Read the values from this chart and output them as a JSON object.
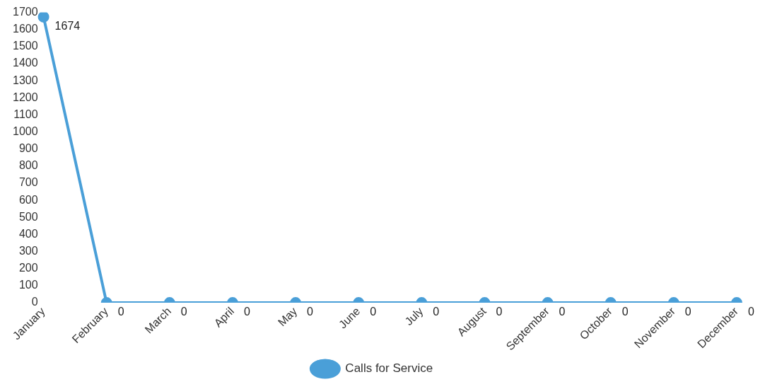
{
  "chart_data": {
    "type": "line",
    "categories": [
      "January",
      "February",
      "March",
      "April",
      "May",
      "June",
      "July",
      "August",
      "September",
      "October",
      "November",
      "December"
    ],
    "series": [
      {
        "name": "Calls for Service",
        "color": "#4a9fd8",
        "values": [
          1674,
          0,
          0,
          0,
          0,
          0,
          0,
          0,
          0,
          0,
          0,
          0
        ]
      }
    ],
    "ylim": [
      0,
      1700
    ],
    "yticks": [
      0,
      100,
      200,
      300,
      400,
      500,
      600,
      700,
      800,
      900,
      1000,
      1100,
      1200,
      1300,
      1400,
      1500,
      1600,
      1700
    ],
    "data_labels": true,
    "legend": "bottom",
    "marker": "circle",
    "line_style": "solid",
    "grid": false
  }
}
